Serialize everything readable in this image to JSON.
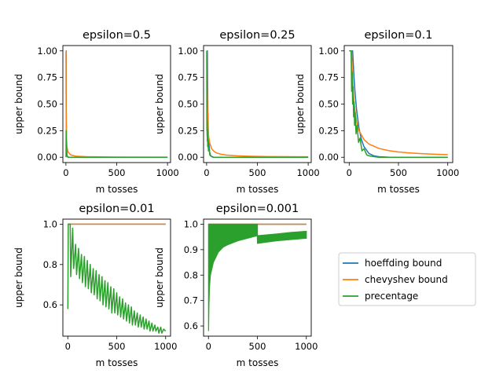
{
  "chart_data": [
    {
      "type": "line",
      "title": "epsilon=0.5",
      "xlabel": "m tosses",
      "ylabel": "upper bound",
      "xlim": [
        -30,
        1030
      ],
      "ylim": [
        -0.05,
        1.05
      ],
      "xticks": [
        0,
        500,
        1000
      ],
      "yticks": [
        0.0,
        0.25,
        0.5,
        0.75,
        1.0
      ],
      "ytick_labels": [
        "0.00",
        "0.25",
        "0.50",
        "0.75",
        "1.00"
      ],
      "series": [
        {
          "name": "hoeffding bound",
          "color": "#1f77b4",
          "points": [
            [
              1,
              1.0
            ],
            [
              2,
              1.0
            ],
            [
              3,
              0.4463
            ],
            [
              5,
              0.1642
            ],
            [
              10,
              0.0135
            ],
            [
              20,
              0.0001
            ],
            [
              50,
              0.0
            ],
            [
              1000,
              0.0
            ]
          ]
        },
        {
          "name": "chevyshev bound",
          "color": "#ff7f0e",
          "points": [
            [
              1,
              1.0
            ],
            [
              2,
              0.5
            ],
            [
              3,
              0.3333
            ],
            [
              5,
              0.2
            ],
            [
              10,
              0.1
            ],
            [
              20,
              0.05
            ],
            [
              50,
              0.02
            ],
            [
              100,
              0.01
            ],
            [
              200,
              0.005
            ],
            [
              500,
              0.002
            ],
            [
              1000,
              0.001
            ]
          ]
        },
        {
          "name": "precentage",
          "color": "#2ca02c",
          "points": [
            [
              1,
              0.0
            ],
            [
              2,
              0.25
            ],
            [
              4,
              0.12
            ],
            [
              6,
              0.06
            ],
            [
              10,
              0.02
            ],
            [
              20,
              0.002
            ],
            [
              40,
              0.0
            ],
            [
              1000,
              0.0
            ]
          ]
        }
      ]
    },
    {
      "type": "line",
      "title": "epsilon=0.25",
      "xlabel": "m tosses",
      "ylabel": "upper bound",
      "xlim": [
        -30,
        1030
      ],
      "ylim": [
        -0.05,
        1.05
      ],
      "xticks": [
        0,
        500,
        1000
      ],
      "yticks": [
        0.0,
        0.25,
        0.5,
        0.75,
        1.0
      ],
      "ytick_labels": [
        "0.00",
        "0.25",
        "0.50",
        "0.75",
        "1.00"
      ],
      "series": [
        {
          "name": "hoeffding bound",
          "color": "#1f77b4",
          "points": [
            [
              1,
              1.0
            ],
            [
              8,
              1.0
            ],
            [
              12,
              0.4463
            ],
            [
              16,
              0.2707
            ],
            [
              20,
              0.1642
            ],
            [
              30,
              0.0474
            ],
            [
              40,
              0.0135
            ],
            [
              60,
              0.0011
            ],
            [
              100,
              0.0
            ],
            [
              1000,
              0.0
            ]
          ]
        },
        {
          "name": "chevyshev bound",
          "color": "#ff7f0e",
          "points": [
            [
              1,
              1.0
            ],
            [
              4,
              1.0
            ],
            [
              6,
              0.6667
            ],
            [
              8,
              0.5
            ],
            [
              10,
              0.4
            ],
            [
              15,
              0.2667
            ],
            [
              20,
              0.2
            ],
            [
              30,
              0.1333
            ],
            [
              50,
              0.08
            ],
            [
              75,
              0.0533
            ],
            [
              100,
              0.04
            ],
            [
              150,
              0.0267
            ],
            [
              200,
              0.02
            ],
            [
              300,
              0.0133
            ],
            [
              400,
              0.01
            ],
            [
              600,
              0.0067
            ],
            [
              800,
              0.005
            ],
            [
              1000,
              0.004
            ]
          ]
        },
        {
          "name": "precentage",
          "color": "#2ca02c",
          "points": [
            [
              1,
              1.0
            ],
            [
              2,
              0.5
            ],
            [
              3,
              0.25
            ],
            [
              4,
              0.38
            ],
            [
              5,
              0.2
            ],
            [
              6,
              0.34
            ],
            [
              7,
              0.15
            ],
            [
              9,
              0.26
            ],
            [
              11,
              0.1
            ],
            [
              14,
              0.17
            ],
            [
              18,
              0.06
            ],
            [
              24,
              0.08
            ],
            [
              32,
              0.02
            ],
            [
              45,
              0.01
            ],
            [
              70,
              0.0
            ],
            [
              1000,
              0.0
            ]
          ]
        }
      ]
    },
    {
      "type": "line",
      "title": "epsilon=0.1",
      "xlabel": "m tosses",
      "ylabel": "upper bound",
      "xlim": [
        -50,
        1050
      ],
      "ylim": [
        -0.05,
        1.05
      ],
      "xticks": [
        0,
        500,
        1000
      ],
      "yticks": [
        0.0,
        0.25,
        0.5,
        0.75,
        1.0
      ],
      "ytick_labels": [
        "0.00",
        "0.25",
        "0.50",
        "0.75",
        "1.00"
      ],
      "series": [
        {
          "name": "hoeffding bound",
          "color": "#1f77b4",
          "points": [
            [
              1,
              1.0
            ],
            [
              35,
              1.0
            ],
            [
              50,
              0.7358
            ],
            [
              60,
              0.6024
            ],
            [
              75,
              0.4463
            ],
            [
              100,
              0.2707
            ],
            [
              125,
              0.1642
            ],
            [
              150,
              0.0996
            ],
            [
              200,
              0.0366
            ],
            [
              250,
              0.0135
            ],
            [
              300,
              0.005
            ],
            [
              400,
              0.0007
            ],
            [
              500,
              0.0001
            ],
            [
              1000,
              0.0
            ]
          ]
        },
        {
          "name": "chevyshev bound",
          "color": "#ff7f0e",
          "points": [
            [
              1,
              1.0
            ],
            [
              25,
              1.0
            ],
            [
              30,
              0.8333
            ],
            [
              40,
              0.625
            ],
            [
              50,
              0.5
            ],
            [
              75,
              0.3333
            ],
            [
              100,
              0.25
            ],
            [
              150,
              0.1667
            ],
            [
              200,
              0.125
            ],
            [
              300,
              0.0833
            ],
            [
              400,
              0.0625
            ],
            [
              500,
              0.05
            ],
            [
              600,
              0.0417
            ],
            [
              700,
              0.0357
            ],
            [
              800,
              0.0313
            ],
            [
              900,
              0.0278
            ],
            [
              1000,
              0.025
            ]
          ]
        },
        {
          "name": "precentage",
          "color": "#2ca02c",
          "points": [
            [
              1,
              1.0
            ],
            [
              20,
              1.0
            ],
            [
              25,
              0.62
            ],
            [
              30,
              0.8
            ],
            [
              35,
              0.5
            ],
            [
              40,
              0.66
            ],
            [
              45,
              0.38
            ],
            [
              50,
              0.52
            ],
            [
              55,
              0.3
            ],
            [
              60,
              0.42
            ],
            [
              70,
              0.22
            ],
            [
              80,
              0.3
            ],
            [
              95,
              0.14
            ],
            [
              110,
              0.18
            ],
            [
              130,
              0.06
            ],
            [
              150,
              0.08
            ],
            [
              180,
              0.02
            ],
            [
              220,
              0.01
            ],
            [
              300,
              0.0
            ],
            [
              1000,
              0.0
            ]
          ]
        }
      ]
    },
    {
      "type": "line",
      "title": "epsilon=0.01",
      "xlabel": "m tosses",
      "ylabel": "upper bound",
      "xlim": [
        -50,
        1050
      ],
      "ylim": [
        0.445,
        1.025
      ],
      "xticks": [
        0,
        500,
        1000
      ],
      "yticks": [
        0.6,
        0.8,
        1.0
      ],
      "ytick_labels": [
        "0.6",
        "0.8",
        "1.0"
      ],
      "series": [
        {
          "name": "hoeffding bound",
          "color": "#1f77b4",
          "points": [
            [
              1,
              1.0
            ],
            [
              1000,
              1.0
            ]
          ]
        },
        {
          "name": "chevyshev bound",
          "color": "#ff7f0e",
          "points": [
            [
              1,
              1.0
            ],
            [
              1000,
              1.0
            ]
          ]
        },
        {
          "name": "precentage",
          "color": "#2ca02c",
          "points": [
            [
              1,
              0.58
            ],
            [
              5,
              1.0
            ],
            [
              25,
              1.0
            ],
            [
              30,
              0.74
            ],
            [
              50,
              0.98
            ],
            [
              60,
              0.78
            ],
            [
              80,
              0.9
            ],
            [
              90,
              0.75
            ],
            [
              110,
              0.88
            ],
            [
              120,
              0.73
            ],
            [
              140,
              0.85
            ],
            [
              150,
              0.71
            ],
            [
              170,
              0.84
            ],
            [
              180,
              0.69
            ],
            [
              200,
              0.82
            ],
            [
              210,
              0.68
            ],
            [
              230,
              0.8
            ],
            [
              240,
              0.66
            ],
            [
              260,
              0.78
            ],
            [
              270,
              0.65
            ],
            [
              290,
              0.77
            ],
            [
              300,
              0.63
            ],
            [
              320,
              0.75
            ],
            [
              330,
              0.62
            ],
            [
              350,
              0.74
            ],
            [
              360,
              0.6
            ],
            [
              380,
              0.72
            ],
            [
              390,
              0.59
            ],
            [
              410,
              0.71
            ],
            [
              420,
              0.58
            ],
            [
              440,
              0.69
            ],
            [
              450,
              0.56
            ],
            [
              470,
              0.68
            ],
            [
              480,
              0.56
            ],
            [
              500,
              0.66
            ],
            [
              510,
              0.55
            ],
            [
              530,
              0.64
            ],
            [
              540,
              0.54
            ],
            [
              560,
              0.63
            ],
            [
              570,
              0.53
            ],
            [
              590,
              0.61
            ],
            [
              600,
              0.52
            ],
            [
              620,
              0.6
            ],
            [
              630,
              0.51
            ],
            [
              650,
              0.59
            ],
            [
              660,
              0.5
            ],
            [
              680,
              0.57
            ],
            [
              690,
              0.5
            ],
            [
              710,
              0.56
            ],
            [
              720,
              0.49
            ],
            [
              740,
              0.55
            ],
            [
              750,
              0.49
            ],
            [
              770,
              0.54
            ],
            [
              780,
              0.48
            ],
            [
              800,
              0.53
            ],
            [
              810,
              0.48
            ],
            [
              830,
              0.52
            ],
            [
              840,
              0.47
            ],
            [
              860,
              0.51
            ],
            [
              870,
              0.47
            ],
            [
              890,
              0.5
            ],
            [
              900,
              0.47
            ],
            [
              920,
              0.49
            ],
            [
              930,
              0.46
            ],
            [
              950,
              0.49
            ],
            [
              960,
              0.46
            ],
            [
              980,
              0.48
            ],
            [
              1000,
              0.47
            ]
          ]
        }
      ]
    },
    {
      "type": "line",
      "title": "epsilon=0.001",
      "xlabel": "m tosses",
      "ylabel": "upper bound",
      "xlim": [
        -50,
        1050
      ],
      "ylim": [
        0.56,
        1.02
      ],
      "xticks": [
        0,
        500,
        1000
      ],
      "yticks": [
        0.6,
        0.7,
        0.8,
        0.9,
        1.0
      ],
      "ytick_labels": [
        "0.6",
        "0.7",
        "0.8",
        "0.9",
        "1.0"
      ],
      "series": [
        {
          "name": "hoeffding bound",
          "color": "#1f77b4",
          "points": [
            [
              1,
              1.0
            ],
            [
              1000,
              1.0
            ]
          ]
        },
        {
          "name": "chevyshev bound",
          "color": "#ff7f0e",
          "points": [
            [
              1,
              1.0
            ],
            [
              1000,
              1.0
            ]
          ]
        },
        {
          "name": "precentage",
          "color": "#2ca02c",
          "band": true,
          "upper": [
            [
              1,
              1.0
            ],
            [
              500,
              1.0
            ],
            [
              501,
              0.955
            ],
            [
              700,
              0.962
            ],
            [
              850,
              0.968
            ],
            [
              1000,
              0.972
            ]
          ],
          "lower": [
            [
              1,
              0.58
            ],
            [
              5,
              0.68
            ],
            [
              10,
              0.75
            ],
            [
              20,
              0.8
            ],
            [
              50,
              0.85
            ],
            [
              100,
              0.89
            ],
            [
              150,
              0.91
            ],
            [
              200,
              0.92
            ],
            [
              300,
              0.935
            ],
            [
              400,
              0.945
            ],
            [
              499,
              0.955
            ],
            [
              501,
              0.925
            ],
            [
              700,
              0.935
            ],
            [
              850,
              0.94
            ],
            [
              1000,
              0.945
            ]
          ]
        }
      ]
    }
  ],
  "legend": {
    "location": "lower-right",
    "entries": [
      {
        "label": "hoeffding bound",
        "color": "#1f77b4"
      },
      {
        "label": "chevyshev bound",
        "color": "#ff7f0e"
      },
      {
        "label": "precentage",
        "color": "#2ca02c"
      }
    ]
  }
}
